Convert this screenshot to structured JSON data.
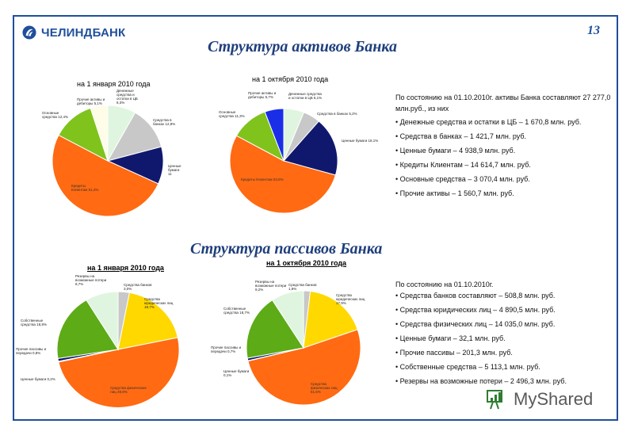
{
  "header": {
    "logo_text": "ЧЕЛИНДБАНК",
    "page_number": "13"
  },
  "sections": {
    "assets_title": "Структура активов Банка",
    "liabilities_title": "Структура пассивов Банка"
  },
  "assets_info": {
    "head": "По состоянию на 01.10.2010г. активы Банка составляют 27 277,0 млн.руб., из них",
    "items": [
      "Денежные средства и остатки в ЦБ – 1 670,8 млн. руб.",
      "Средства в банках – 1 421,7 млн. руб.",
      "Ценные бумаги – 4 938,9 млн. руб.",
      "Кредиты Клиентам – 14 614,7 млн. руб.",
      "Основные средства – 3 070,4 млн. руб.",
      "Прочие активы – 1 560,7 млн. руб."
    ]
  },
  "liabilities_info": {
    "head": "По состоянию на 01.10.2010г.",
    "items": [
      "Средства банков составляют – 508,8 млн. руб.",
      "Средства юридических лиц – 4 890,5 млн. руб.",
      "Средства физических лиц – 14 035,0 млн. руб.",
      "Ценные бумаги – 32,1 млн. руб.",
      "Прочие пассивы – 201,3 млн. руб.",
      "Собственные средства – 5 113,1 млн. руб.",
      "Резервы на возможные потери – 2 496,3 млн. руб."
    ]
  },
  "watermark": {
    "text": "MyShared"
  },
  "chart_data": [
    {
      "type": "pie",
      "title": "на 1 января 2010 года",
      "series": [
        {
          "values": [
            8.3,
            12.8,
            11,
            51.4,
            12.4,
            5.1
          ]
        }
      ],
      "labels": [
        "Денежные средства и остатки в ЦБ 8,3%",
        "Средства в банках 12,8%",
        "Ценные бумаги 11",
        "Кредиты Клиентам 51,4%",
        "Основные средства 12,4%",
        "Прочие активы и дебиторы 5,1%"
      ],
      "colors": [
        "#dff5df",
        "#c8c8c8",
        "#10186e",
        "#ff6a12",
        "#7fc31c",
        "#fffde8"
      ]
    },
    {
      "type": "pie",
      "title": "на 1 октября 2010 года",
      "series": [
        {
          "values": [
            6.1,
            5.2,
            18.1,
            53.6,
            11.3,
            5.7
          ]
        }
      ],
      "labels": [
        "Денежные средства и остатки в ЦБ 6,1%",
        "Средства в банках 5,2%",
        "Ценные бумаги 18,1%",
        "Кредиты Клиентам 53,6%",
        "Основные средства 11,3%",
        "Прочие активы и дебиторы 5,7%"
      ],
      "colors": [
        "#dff5df",
        "#c8c8c8",
        "#10186e",
        "#ff6a12",
        "#7fc31c",
        "#1a2ee8"
      ]
    },
    {
      "type": "pie",
      "title": "на 1 января 2010 года",
      "series": [
        {
          "values": [
            3,
            18.7,
            49.8,
            0.2,
            0.8,
            18.8,
            8.7
          ]
        }
      ],
      "labels": [
        "Средства банков 3,0%",
        "Средства юридических лиц 18,7%",
        "Средства физических лиц 49,8%",
        "Ценные бумаги 0,2%",
        "Прочие пассивы и передачи 0,8%",
        "Собственные средства 18,8%",
        "Резервы на возможные потери 8,7%"
      ],
      "colors": [
        "#c8c8c8",
        "#ffd800",
        "#ff6a12",
        "#7a7aaa",
        "#10186e",
        "#5dab17",
        "#dff5df"
      ]
    },
    {
      "type": "pie",
      "title": "на 1 октября 2010 года",
      "series": [
        {
          "values": [
            1.9,
            17.9,
            51.5,
            0.1,
            0.7,
            18.7,
            9.2
          ]
        }
      ],
      "labels": [
        "Средства банков 1,9%",
        "Средства юридических лиц 17,9%",
        "Средства физических лиц 51,5%",
        "Ценные бумаги 0,1%",
        "Прочие пассивы и передачи 0,7%",
        "Собственные средства 18,7%",
        "Резервы на возможные потери 9,2%"
      ],
      "colors": [
        "#c8c8c8",
        "#ffd800",
        "#ff6a12",
        "#7a7aaa",
        "#10186e",
        "#5dab17",
        "#dff5df"
      ]
    }
  ]
}
